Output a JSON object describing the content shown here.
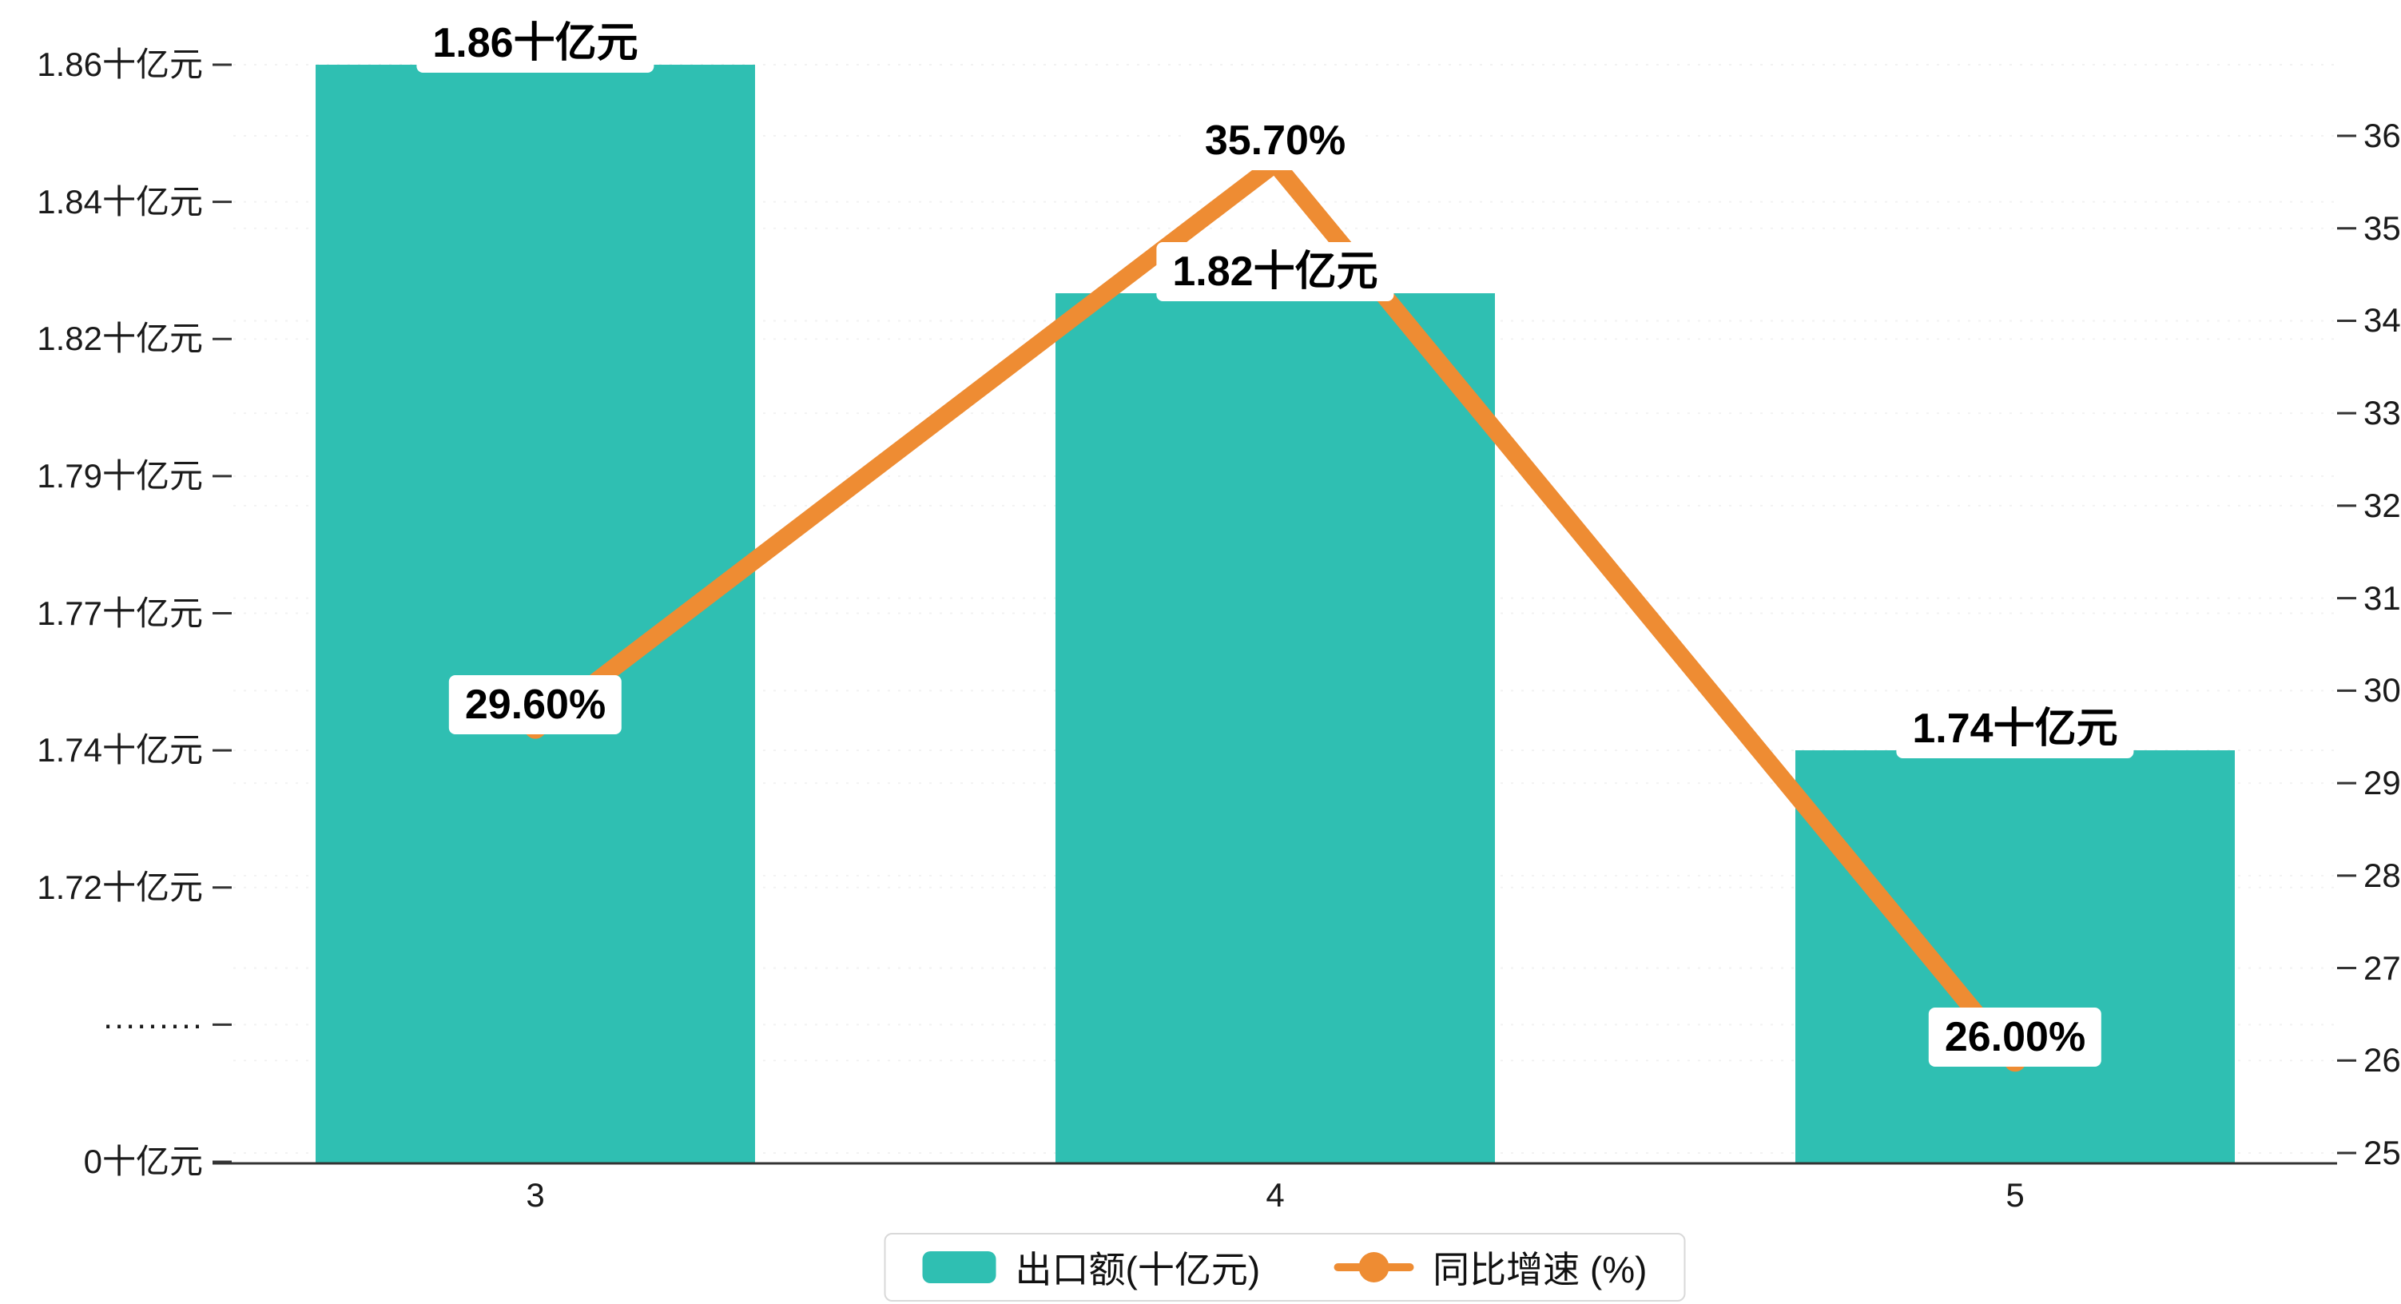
{
  "chart_data": {
    "type": "bar+line",
    "categories": [
      "3",
      "4",
      "5"
    ],
    "series": [
      {
        "name": "出口额(十亿元)",
        "type": "bar",
        "axis": "left",
        "values": [
          1.86,
          1.82,
          1.74
        ],
        "labels": [
          "1.86十亿元",
          "1.82十亿元",
          "1.74十亿元"
        ],
        "color": "#2fbfb2"
      },
      {
        "name": "同比增速 (%)",
        "type": "line",
        "axis": "right",
        "values": [
          29.6,
          35.7,
          26.0
        ],
        "labels": [
          "29.60%",
          "35.70%",
          "26.00%"
        ],
        "color": "#ee8c33"
      }
    ],
    "left_axis": {
      "unit": "十亿元",
      "broken": true,
      "tick_labels": [
        "1.86十亿元",
        "1.84十亿元",
        "1.82十亿元",
        "1.79十亿元",
        "1.77十亿元",
        "1.74十亿元",
        "1.72十亿元",
        "·········",
        "0十亿元"
      ]
    },
    "right_axis": {
      "min": 25,
      "max": 36,
      "tick_labels": [
        "36",
        "35",
        "34",
        "33",
        "32",
        "31",
        "30",
        "29",
        "28",
        "27",
        "26",
        "25"
      ]
    },
    "legend": [
      {
        "label": "出口额(十亿元)",
        "marker": "bar",
        "color": "#2fbfb2"
      },
      {
        "label": "同比增速 (%)",
        "marker": "line",
        "color": "#ee8c33"
      }
    ],
    "grid": true,
    "legend_position": "bottom-center",
    "background": "#ffffff"
  }
}
